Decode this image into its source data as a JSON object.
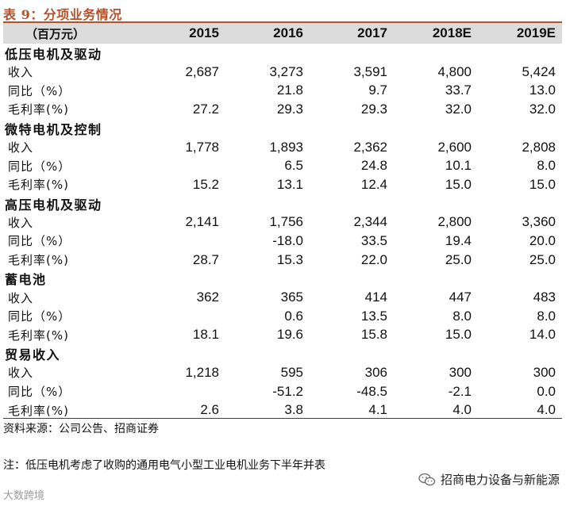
{
  "title": "表 9：分项业务情况",
  "header": {
    "unit": "（百万元）",
    "years": [
      "2015",
      "2016",
      "2017",
      "2018E",
      "2019E"
    ]
  },
  "sections": [
    {
      "name": "低压电机及驱动",
      "rows": [
        {
          "label": "收入",
          "values": [
            "2,687",
            "3,273",
            "3,591",
            "4,800",
            "5,424"
          ]
        },
        {
          "label": "同比（%）",
          "values": [
            "",
            "21.8",
            "9.7",
            "33.7",
            "13.0"
          ]
        },
        {
          "label": "毛利率(%)",
          "values": [
            "27.2",
            "29.3",
            "29.3",
            "32.0",
            "32.0"
          ]
        }
      ]
    },
    {
      "name": "微特电机及控制",
      "rows": [
        {
          "label": "收入",
          "values": [
            "1,778",
            "1,893",
            "2,362",
            "2,600",
            "2,808"
          ]
        },
        {
          "label": "同比（%）",
          "values": [
            "",
            "6.5",
            "24.8",
            "10.1",
            "8.0"
          ]
        },
        {
          "label": "毛利率(%)",
          "values": [
            "15.2",
            "13.1",
            "12.4",
            "15.0",
            "15.0"
          ]
        }
      ]
    },
    {
      "name": "高压电机及驱动",
      "rows": [
        {
          "label": "收入",
          "values": [
            "2,141",
            "1,756",
            "2,344",
            "2,800",
            "3,360"
          ]
        },
        {
          "label": "同比（%）",
          "values": [
            "",
            "-18.0",
            "33.5",
            "19.4",
            "20.0"
          ]
        },
        {
          "label": "毛利率(%)",
          "values": [
            "28.7",
            "15.3",
            "22.0",
            "25.0",
            "25.0"
          ]
        }
      ]
    },
    {
      "name": "蓄电池",
      "rows": [
        {
          "label": "收入",
          "values": [
            "362",
            "365",
            "414",
            "447",
            "483"
          ]
        },
        {
          "label": "同比（%）",
          "values": [
            "",
            "0.6",
            "13.5",
            "8.0",
            "8.0"
          ]
        },
        {
          "label": "毛利率(%)",
          "values": [
            "18.1",
            "19.6",
            "15.8",
            "15.0",
            "14.0"
          ]
        }
      ]
    },
    {
      "name": "贸易收入",
      "rows": [
        {
          "label": "收入",
          "values": [
            "1,218",
            "595",
            "306",
            "300",
            "300"
          ]
        },
        {
          "label": "同比（%）",
          "values": [
            "",
            "-51.2",
            "-48.5",
            "-2.1",
            "0.0"
          ]
        },
        {
          "label": "毛利率(%)",
          "values": [
            "2.6",
            "3.8",
            "4.1",
            "4.0",
            "4.0"
          ]
        }
      ]
    }
  ],
  "source": "资料来源：公司公告、招商证券",
  "note": "注：低压电机考虑了收购的通用电气小型工业电机业务下半年并表",
  "brand": "招商电力设备与新能源",
  "watermark": "大数跨境",
  "icon": "wechat-icon"
}
